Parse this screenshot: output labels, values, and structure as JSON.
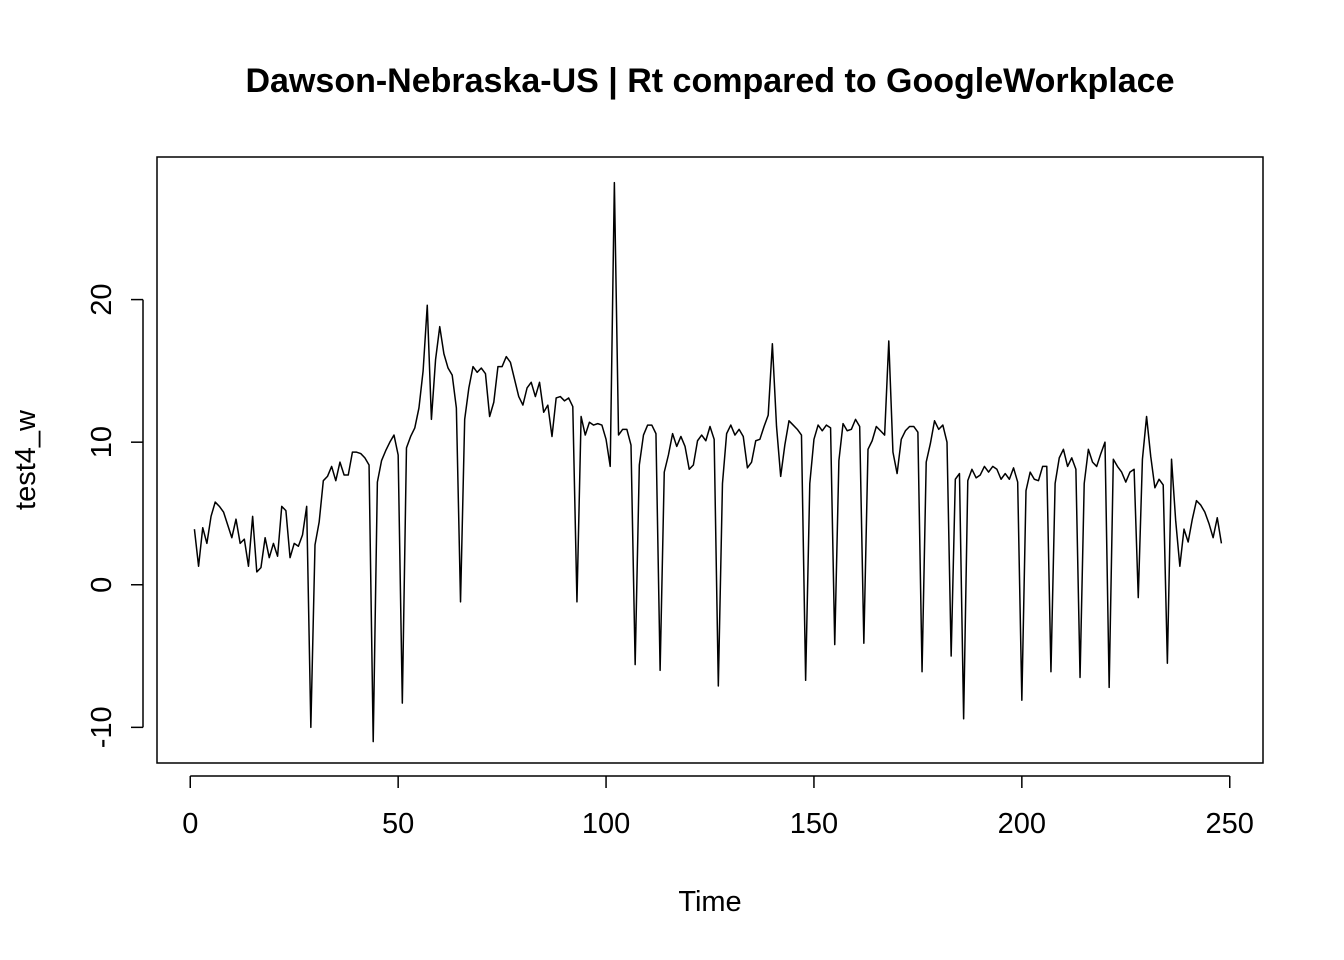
{
  "chart_data": {
    "type": "line",
    "title": "Dawson-Nebraska-US | Rt compared to GoogleWorkplace",
    "xlabel": "Time",
    "ylabel": "test4_w",
    "xlim": [
      -8,
      258
    ],
    "ylim": [
      -12.5,
      30
    ],
    "x_ticks": [
      0,
      50,
      100,
      150,
      200,
      250
    ],
    "x_tick_labels": [
      "0",
      "50",
      "100",
      "150",
      "200",
      "250"
    ],
    "y_ticks": [
      -10,
      0,
      10,
      20
    ],
    "y_tick_labels": [
      "-10",
      "0",
      "10",
      "20"
    ],
    "grid": false,
    "legend": "none",
    "line_color": "#000000",
    "series": [
      {
        "x_start": 1,
        "values": [
          3.9,
          1.3,
          4.0,
          2.9,
          4.8,
          5.8,
          5.5,
          5.1,
          4.2,
          3.3,
          4.6,
          2.9,
          3.2,
          1.3,
          4.8,
          0.9,
          1.2,
          3.3,
          1.9,
          2.9,
          2.0,
          5.5,
          5.2,
          1.9,
          2.9,
          2.7,
          3.5,
          5.5,
          -10.0,
          2.8,
          4.4,
          7.3,
          7.6,
          8.3,
          7.3,
          8.6,
          7.7,
          7.7,
          9.3,
          9.3,
          9.2,
          8.9,
          8.4,
          -11.0,
          7.2,
          8.7,
          9.4,
          10.0,
          10.5,
          9.1,
          -8.3,
          9.6,
          10.4,
          11.0,
          12.4,
          15.0,
          19.6,
          11.6,
          15.8,
          18.1,
          16.2,
          15.2,
          14.7,
          12.4,
          -1.2,
          11.6,
          13.8,
          15.3,
          14.9,
          15.2,
          14.8,
          11.8,
          12.8,
          15.3,
          15.3,
          16.0,
          15.6,
          14.4,
          13.2,
          12.6,
          13.8,
          14.2,
          13.2,
          14.2,
          12.1,
          12.6,
          10.4,
          13.1,
          13.2,
          12.9,
          13.1,
          12.5,
          -1.2,
          11.8,
          10.5,
          11.4,
          11.2,
          11.3,
          11.2,
          10.2,
          8.3,
          28.2,
          10.5,
          10.9,
          10.9,
          9.8,
          -5.6,
          8.4,
          10.5,
          11.2,
          11.2,
          10.6,
          -6.0,
          7.9,
          9.1,
          10.6,
          9.7,
          10.4,
          9.7,
          8.1,
          8.4,
          10.1,
          10.5,
          10.1,
          11.1,
          10.2,
          -7.1,
          7.1,
          10.6,
          11.2,
          10.5,
          10.9,
          10.4,
          8.2,
          8.6,
          10.1,
          10.2,
          11.1,
          11.9,
          16.9,
          11.1,
          7.6,
          9.8,
          11.5,
          11.2,
          10.9,
          10.5,
          -6.7,
          7.1,
          10.2,
          11.2,
          10.8,
          11.2,
          11.0,
          -4.2,
          8.7,
          11.3,
          10.8,
          10.9,
          11.6,
          11.1,
          -4.1,
          9.5,
          10.1,
          11.1,
          10.8,
          10.5,
          17.1,
          9.3,
          7.8,
          10.2,
          10.8,
          11.1,
          11.1,
          10.7,
          -6.1,
          8.6,
          9.9,
          11.5,
          10.9,
          11.2,
          10.0,
          -5.0,
          7.4,
          7.8,
          -9.4,
          7.3,
          8.1,
          7.5,
          7.7,
          8.3,
          7.9,
          8.3,
          8.1,
          7.4,
          7.8,
          7.4,
          8.2,
          7.2,
          -8.1,
          6.6,
          7.9,
          7.4,
          7.3,
          8.3,
          8.3,
          -6.1,
          7.1,
          8.9,
          9.5,
          8.3,
          8.9,
          8.1,
          -6.5,
          7.1,
          9.5,
          8.6,
          8.3,
          9.2,
          10.0,
          -7.2,
          8.8,
          8.3,
          7.9,
          7.2,
          7.9,
          8.1,
          -0.9,
          8.8,
          11.8,
          9.0,
          6.8,
          7.4,
          7.0,
          -5.5,
          8.8,
          4.5,
          1.3,
          3.9,
          3.0,
          4.6,
          5.9,
          5.6,
          5.1,
          4.3,
          3.3,
          4.7,
          2.9
        ]
      }
    ]
  }
}
